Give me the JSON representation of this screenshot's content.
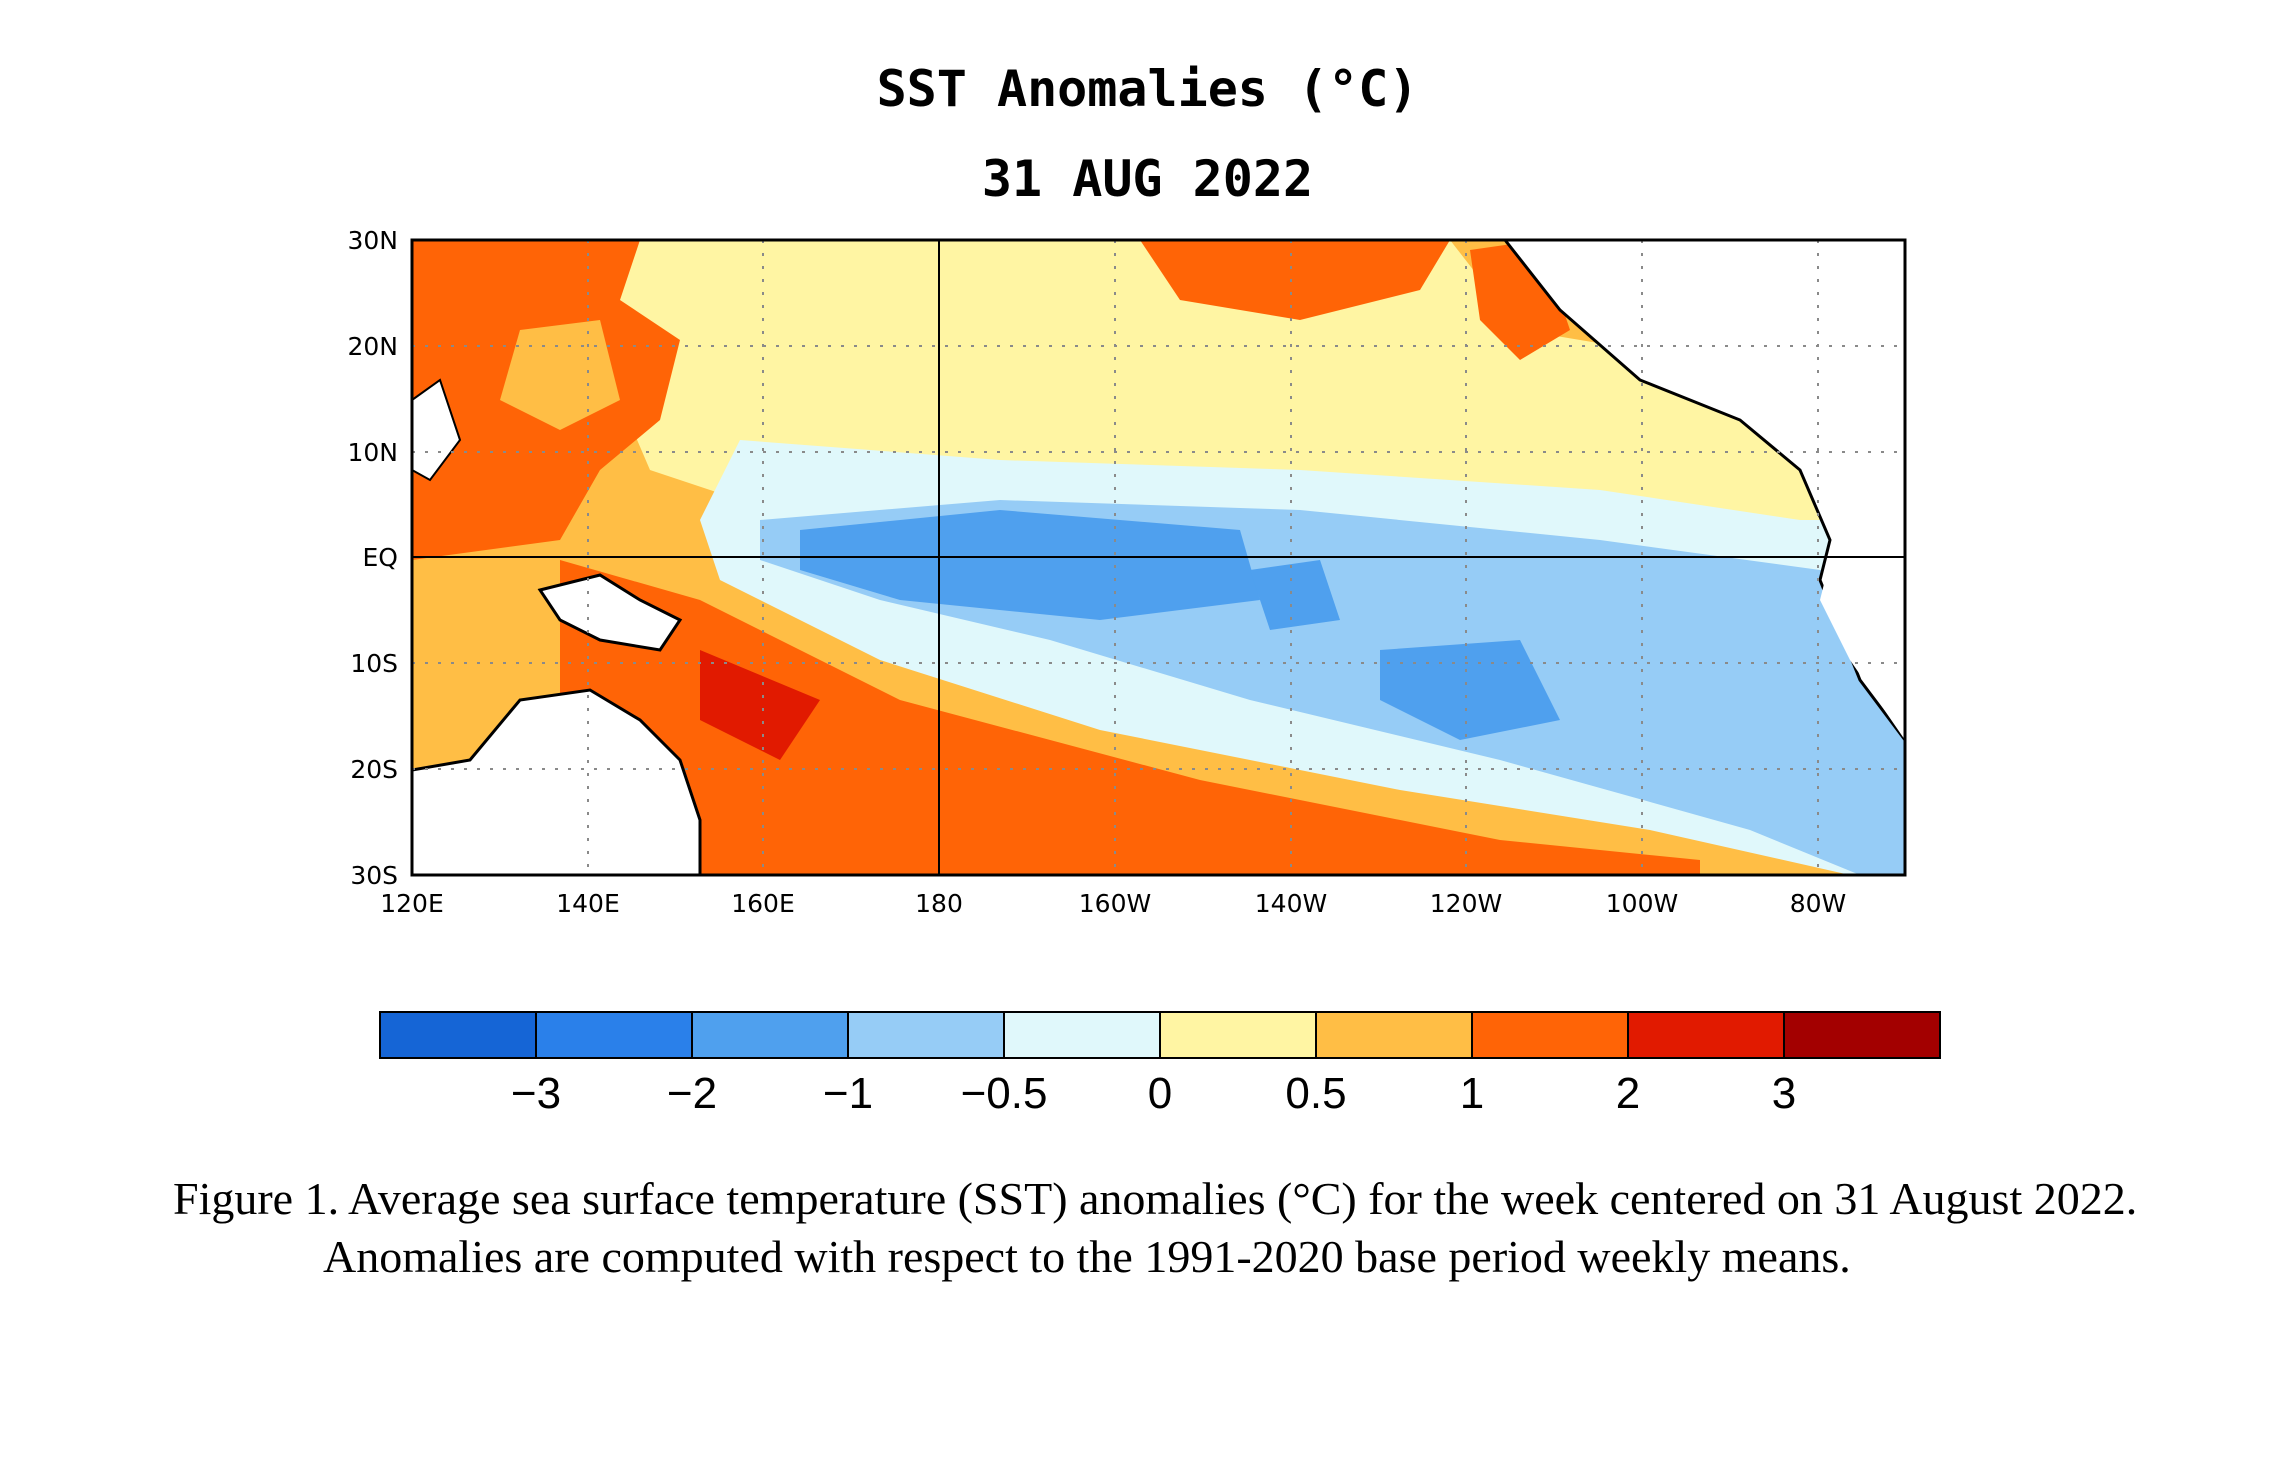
{
  "title": "SST Anomalies (°C)",
  "date": "31 AUG 2022",
  "map": {
    "lat_labels": [
      "30N",
      "20N",
      "10N",
      "EQ",
      "10S",
      "20S",
      "30S"
    ],
    "lon_labels": [
      "120E",
      "140E",
      "160E",
      "180",
      "160W",
      "140W",
      "120W",
      "100W",
      "80W"
    ],
    "lat_range": [
      -30,
      30
    ],
    "lon_range": [
      120,
      290
    ],
    "grid": "dotted"
  },
  "colorbar": {
    "colors": [
      "#1565d6",
      "#2a80ea",
      "#4fa0ee",
      "#96ccf6",
      "#e0f8fb",
      "#fff5a3",
      "#ffbe45",
      "#ff6406",
      "#e11a00",
      "#a30000"
    ],
    "labels": [
      "−3",
      "−2",
      "−1",
      "−0.5",
      "0",
      "0.5",
      "1",
      "2",
      "3"
    ]
  },
  "caption": "Figure 1. Average sea surface temperature (SST) anomalies (°C) for the week centered on 31 August 2022.  Anomalies are computed with respect to the 1991-2020 base period weekly means."
}
